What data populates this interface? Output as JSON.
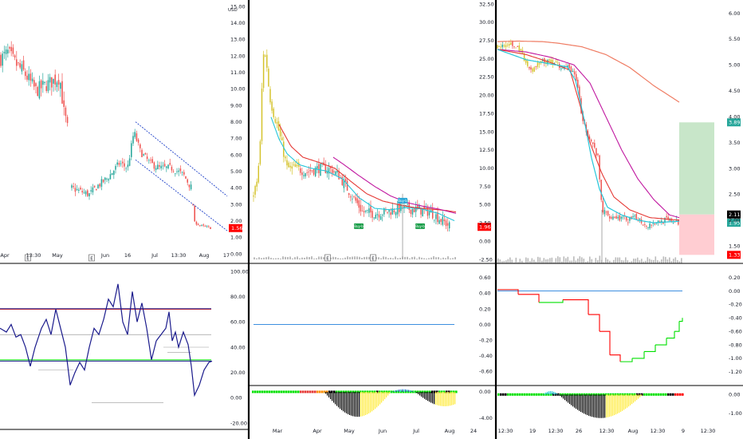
{
  "colors": {
    "up": "#26a69a",
    "down": "#ef5350",
    "gold": "#d4c22a",
    "cyan": "#26c6da",
    "magenta": "#c0169f",
    "red_line": "#e53935",
    "salmon": "#ef7c63",
    "blue_channel": "#1e40c8",
    "navy": "#1a1a8c",
    "green": "#00e000",
    "black": "#000000",
    "yellow": "#ffeb3b",
    "price_tag": "#ff0000",
    "label_green": "#1b9e4a",
    "label_blue": "#2aa6d6",
    "projection_green": "#c8e6c9",
    "projection_red": "#ffcdd2"
  },
  "chart_data": [
    {
      "panel": "left-price",
      "type": "candlestick",
      "currency": "USD",
      "x_ticks": [
        "Apr",
        "13:30",
        "May",
        "Jun",
        "16",
        "Jul",
        "13:30",
        "Aug",
        "17"
      ],
      "y_ticks": [
        "15.00",
        "14.00",
        "13.00",
        "12.00",
        "11.00",
        "10.00",
        "9.00",
        "8.00",
        "7.00",
        "6.00",
        "5.00",
        "4.00",
        "3.00",
        "2.00",
        "1.00",
        "0.00"
      ],
      "ylim": [
        0,
        15
      ],
      "last_price": "1.56",
      "markers": [
        "E",
        "E"
      ],
      "channel": [
        [
          [
            7.7,
            8.0
          ],
          [
            6.9,
            6.3
          ],
          [
            4.2,
            3.5
          ]
        ],
        [
          [
            10.0,
            12.1
          ],
          [
            6.9,
            6.3
          ],
          [
            1.7,
            1.4
          ]
        ]
      ]
    },
    {
      "panel": "middle-price",
      "type": "candlestick",
      "x_ticks": [
        "Mar",
        "Apr",
        "May",
        "Jun",
        "Jul",
        "Aug",
        "24"
      ],
      "y_ticks": [
        "32.50",
        "30.00",
        "27.50",
        "25.00",
        "22.50",
        "20.00",
        "17.50",
        "15.00",
        "12.50",
        "10.00",
        "7.50",
        "5.00",
        "2.50",
        "0.00",
        "-2.50"
      ],
      "ylim": [
        -2.5,
        32.5
      ],
      "last_price": "1.96",
      "markers": [
        "E",
        "E"
      ],
      "labels": [
        "Buy-b",
        "Buy-b",
        "Buy-b"
      ]
    },
    {
      "panel": "right-price",
      "type": "candlestick",
      "x_ticks": [
        "12:30",
        "19",
        "12:30",
        "26",
        "12:30",
        "Aug",
        "12:30",
        "9",
        "12:30"
      ],
      "y_ticks": [
        "6.00",
        "5.50",
        "5.00",
        "4.50",
        "4.00",
        "3.50",
        "3.00",
        "2.50",
        "2.00",
        "1.50"
      ],
      "ylim": [
        1.35,
        6.1
      ],
      "tags": [
        "3.89",
        "2.11",
        "1.95",
        "1.33"
      ]
    },
    {
      "panel": "left-oscillator",
      "type": "line",
      "y_ticks": [
        "100.00",
        "80.00",
        "60.00",
        "40.00",
        "20.00",
        "0.00",
        "-20.00"
      ],
      "ylim": [
        -20,
        100
      ],
      "levels": [
        70,
        50,
        30
      ]
    },
    {
      "panel": "middle-oscillator",
      "type": "line",
      "y_ticks": [
        "0.60",
        "0.40",
        "0.20",
        "0.00",
        "-0.20",
        "-0.40",
        "-0.60"
      ],
      "ylim": [
        -0.65,
        0.65
      ],
      "line_value": 0.0
    },
    {
      "panel": "middle-histogram",
      "type": "bar",
      "y_ticks": [
        "0.00",
        "-4.00"
      ],
      "ylim": [
        -5,
        0.6
      ]
    },
    {
      "panel": "right-oscillator",
      "type": "line",
      "y_ticks": [
        "0.20",
        "0.00",
        "-0.20",
        "-0.40",
        "-0.60",
        "-0.80",
        "-1.00",
        "-1.20"
      ],
      "ylim": [
        -1.25,
        0.22
      ],
      "line_value": 0.0
    },
    {
      "panel": "right-histogram",
      "type": "bar",
      "y_ticks": [
        "0.00",
        "-1.00"
      ],
      "ylim": [
        -1.6,
        0.35
      ]
    }
  ]
}
